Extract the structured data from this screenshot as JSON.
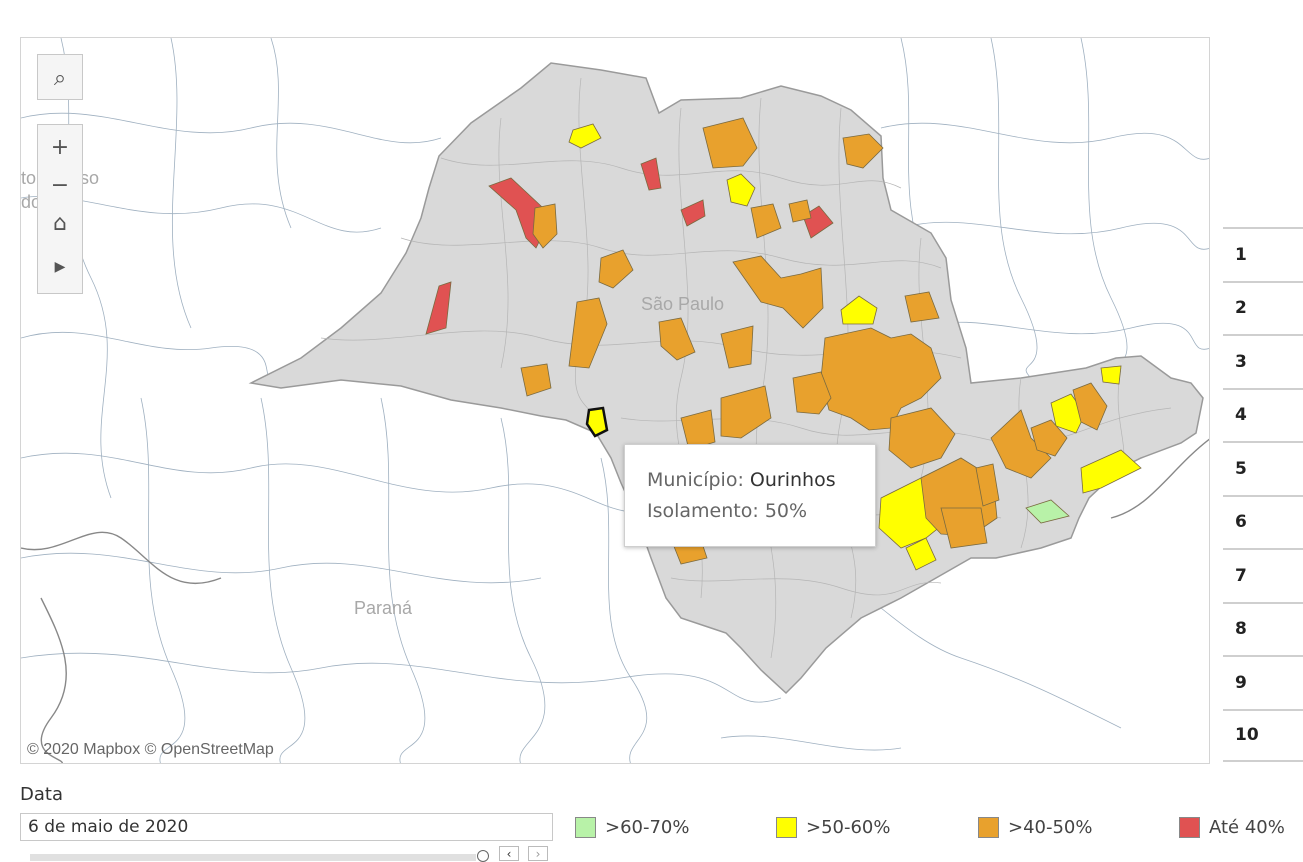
{
  "map": {
    "labels": {
      "mato_grosso": "to Grosso",
      "do_sul": "do Sul",
      "sao_paulo": "São Paulo",
      "parana": "Paraná"
    },
    "attribution": "© 2020 Mapbox © OpenStreetMap",
    "controls": {
      "search": "⌕",
      "zoom_in": "+",
      "zoom_out": "−",
      "home": "⌂",
      "play": "▶"
    },
    "colors": {
      "state": "#d9d9d9",
      "green": "#b8f2a8",
      "yellow": "#ffff00",
      "orange": "#e8a12d",
      "red": "#e05252",
      "border": "#9aa6b2"
    }
  },
  "tooltip": {
    "municipio_label": "Município:",
    "municipio_value": "Ourinhos",
    "isolamento_label": "Isolamento:",
    "isolamento_value": "50%"
  },
  "ranking": [
    "1",
    "2",
    "3",
    "4",
    "5",
    "6",
    "7",
    "8",
    "9",
    "10"
  ],
  "filter": {
    "label": "Data",
    "value": "6 de maio de 2020",
    "prev": "‹",
    "next": "›"
  },
  "legend": [
    {
      "label": ">60-70%",
      "color": "#b8f2a8"
    },
    {
      "label": ">50-60%",
      "color": "#ffff00"
    },
    {
      "label": ">40-50%",
      "color": "#e8a12d"
    },
    {
      "label": "Até 40%",
      "color": "#e05252"
    }
  ]
}
